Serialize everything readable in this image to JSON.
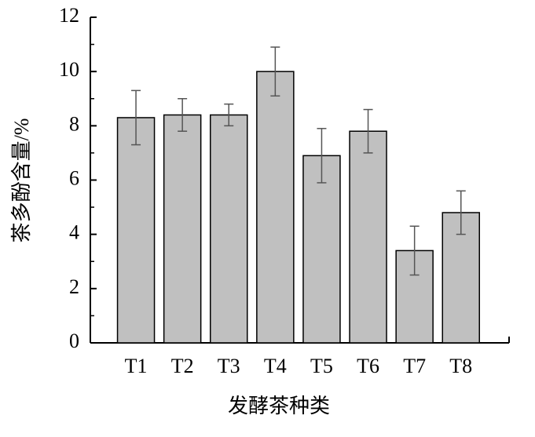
{
  "chart_data": {
    "type": "bar",
    "x_label": "发酵茶种类",
    "y_label": "茶多酚含量/%",
    "categories": [
      "T1",
      "T2",
      "T3",
      "T4",
      "T5",
      "T6",
      "T7",
      "T8"
    ],
    "values": [
      8.3,
      8.4,
      8.4,
      10.0,
      6.9,
      7.8,
      3.4,
      4.8
    ],
    "errors": [
      1.0,
      0.6,
      0.4,
      0.9,
      1.0,
      0.8,
      0.9,
      0.8
    ],
    "color": "#c0c0c0",
    "ylim": [
      0,
      12
    ],
    "yticks": [
      0,
      2,
      4,
      6,
      8,
      10,
      12
    ],
    "grid": false
  }
}
